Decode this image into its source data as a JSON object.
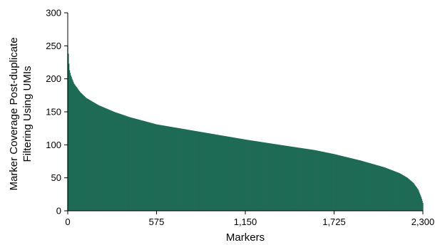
{
  "chart_data": {
    "type": "bar",
    "xlabel": "Markers",
    "ylabel_lines": [
      "Marker Coverage Post-duplicate",
      "Filtering Using UMIs"
    ],
    "xlim": [
      0,
      2300
    ],
    "ylim": [
      0,
      300
    ],
    "xticks": [
      0,
      575,
      1150,
      1725,
      2300
    ],
    "xtick_labels": [
      "0",
      "575",
      "1,150",
      "1,725",
      "2,300"
    ],
    "yticks": [
      0,
      50,
      100,
      150,
      200,
      250,
      300
    ],
    "ytick_labels": [
      "0",
      "50",
      "100",
      "150",
      "200",
      "250",
      "300"
    ],
    "grid": false,
    "bar_color": "#1f6b55",
    "n_markers": 2300,
    "sorted": "descending",
    "curve": [
      {
        "marker": 0,
        "coverage": 250
      },
      {
        "marker": 5,
        "coverage": 235
      },
      {
        "marker": 10,
        "coverage": 215
      },
      {
        "marker": 20,
        "coverage": 205
      },
      {
        "marker": 40,
        "coverage": 193
      },
      {
        "marker": 80,
        "coverage": 180
      },
      {
        "marker": 120,
        "coverage": 171
      },
      {
        "marker": 200,
        "coverage": 160
      },
      {
        "marker": 300,
        "coverage": 150
      },
      {
        "marker": 400,
        "coverage": 142
      },
      {
        "marker": 575,
        "coverage": 131
      },
      {
        "marker": 800,
        "coverage": 122
      },
      {
        "marker": 1000,
        "coverage": 114
      },
      {
        "marker": 1150,
        "coverage": 108
      },
      {
        "marker": 1400,
        "coverage": 99
      },
      {
        "marker": 1600,
        "coverage": 92
      },
      {
        "marker": 1725,
        "coverage": 86
      },
      {
        "marker": 1900,
        "coverage": 76
      },
      {
        "marker": 2050,
        "coverage": 66
      },
      {
        "marker": 2150,
        "coverage": 57
      },
      {
        "marker": 2200,
        "coverage": 50
      },
      {
        "marker": 2240,
        "coverage": 42
      },
      {
        "marker": 2270,
        "coverage": 32
      },
      {
        "marker": 2290,
        "coverage": 20
      },
      {
        "marker": 2300,
        "coverage": 12
      }
    ]
  }
}
